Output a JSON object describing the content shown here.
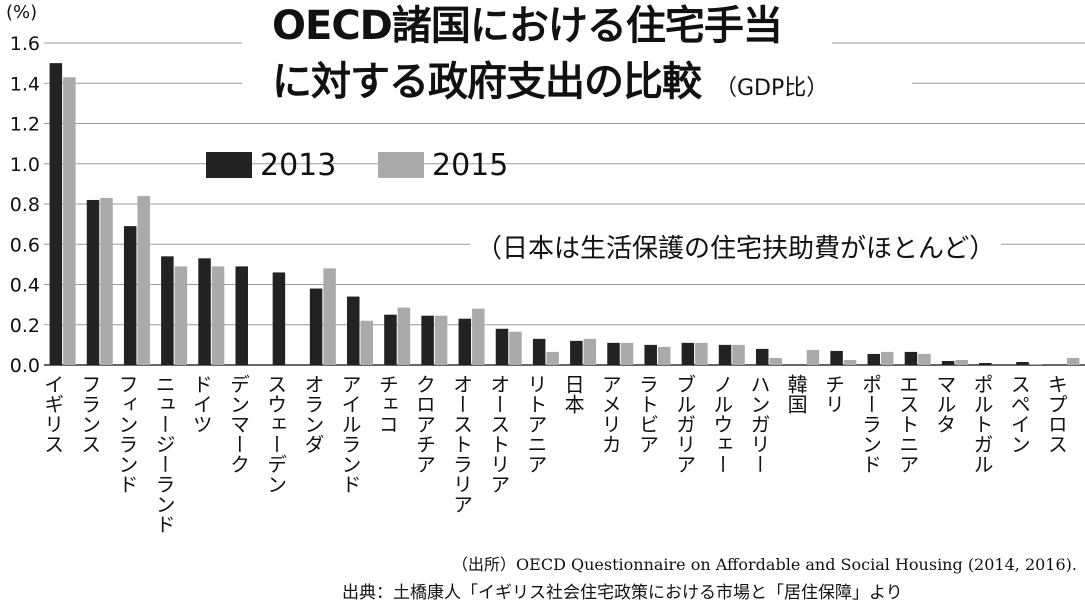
{
  "chart_data": {
    "type": "bar",
    "title": "OECD諸国における住宅手当",
    "title_line2": "に対する政府支出の比較",
    "title_unit": "（GDP比）",
    "ylabel": "(%)",
    "ylim": [
      0,
      1.6
    ],
    "yticks": [
      "0.0",
      "0.2",
      "0.4",
      "0.6",
      "0.8",
      "1.0",
      "1.2",
      "1.4",
      "1.6"
    ],
    "grid": true,
    "legend_position": "top-left",
    "note": "（日本は生活保護の住宅扶助費がほとんど）",
    "categories": [
      "イギリス",
      "フランス",
      "フィンランド",
      "ニュージーランド",
      "ドイツ",
      "デンマーク",
      "スウェーデン",
      "オランダ",
      "アイルランド",
      "チェコ",
      "クロアチア",
      "オーストラリア",
      "オーストリア",
      "リトアニア",
      "日本",
      "アメリカ",
      "ラトビア",
      "ブルガリア",
      "ノルウェー",
      "ハンガリー",
      "韓国",
      "チリ",
      "ポーランド",
      "エストニア",
      "マルタ",
      "ポルトガル",
      "スペイン",
      "キプロス"
    ],
    "series": [
      {
        "name": "2013",
        "color": "#222222",
        "values": [
          1.5,
          0.82,
          0.69,
          0.54,
          0.53,
          0.49,
          0.46,
          0.38,
          0.34,
          0.25,
          0.245,
          0.23,
          0.18,
          0.13,
          0.12,
          0.11,
          0.1,
          0.11,
          0.1,
          0.08,
          0.0,
          0.07,
          0.055,
          0.065,
          0.02,
          0.01,
          0.015,
          0.0
        ]
      },
      {
        "name": "2015",
        "color": "#aaaaaa",
        "values": [
          1.43,
          0.83,
          0.84,
          0.49,
          0.49,
          0.0,
          0.0,
          0.48,
          0.22,
          0.285,
          0.245,
          0.28,
          0.165,
          0.065,
          0.13,
          0.11,
          0.09,
          0.11,
          0.1,
          0.035,
          0.075,
          0.025,
          0.065,
          0.055,
          0.025,
          0.0,
          0.005,
          0.035
        ]
      }
    ]
  },
  "source_line1": "（出所）OECD Questionnaire on Affordable and Social Housing (2014, 2016).",
  "source_line2": "出典：土橋康人「イギリス社会住宅政策における市場と「居住保障」より"
}
